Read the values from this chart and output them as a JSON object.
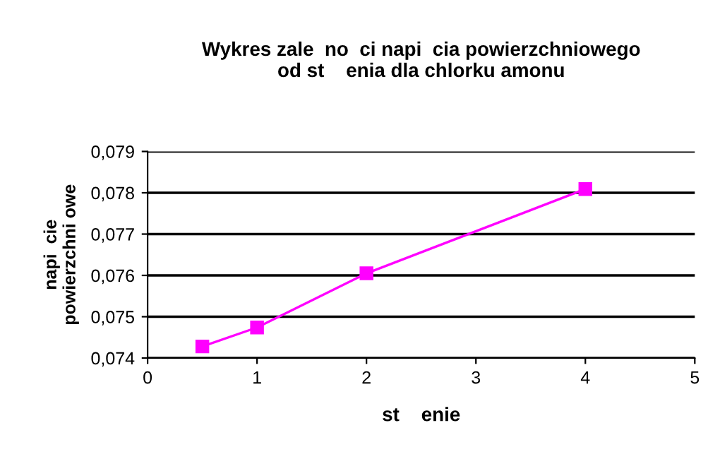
{
  "chart_data": {
    "type": "line",
    "title": "Wykres zale  no  ci napi  cia powierzchniowego\nod st    enia dla chlorku amonu",
    "xlabel": "st    enie",
    "ylabel": "napi  cie\npowierzchni owe",
    "x": [
      0.5,
      1,
      2,
      4
    ],
    "series": [
      {
        "color": "#ff00ff",
        "values": [
          0.07428,
          0.07474,
          0.07605,
          0.07809
        ]
      }
    ],
    "marker": "square",
    "line_style": "solid",
    "grid": "y",
    "legend": false,
    "xlim": [
      0,
      5
    ],
    "xticks": [
      0,
      1,
      2,
      3,
      4,
      5
    ],
    "ylim": [
      0.074,
      0.079
    ],
    "yticks": [
      {
        "value": 0.074,
        "label": "0,074"
      },
      {
        "value": 0.075,
        "label": "0,075"
      },
      {
        "value": 0.076,
        "label": "0,076"
      },
      {
        "value": 0.077,
        "label": "0,077"
      },
      {
        "value": 0.078,
        "label": "0,078"
      },
      {
        "value": 0.079,
        "label": "0,079"
      }
    ]
  }
}
